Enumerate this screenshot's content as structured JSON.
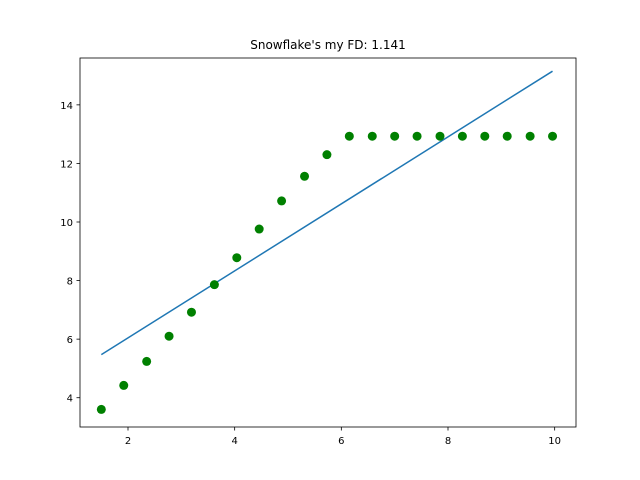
{
  "chart_data": {
    "type": "scatter",
    "title": "Snowflake's my FD: 1.141",
    "xlabel": "",
    "ylabel": "",
    "xlim": [
      1.1,
      10.4
    ],
    "ylim": [
      3.0,
      15.6
    ],
    "x_ticks": [
      2,
      4,
      6,
      8,
      10
    ],
    "y_ticks": [
      4,
      6,
      8,
      10,
      12,
      14
    ],
    "grid": false,
    "legend": null,
    "series": [
      {
        "kind": "scatter",
        "color": "#008000",
        "x": [
          1.5,
          1.92,
          2.35,
          2.77,
          3.19,
          3.62,
          4.04,
          4.46,
          4.88,
          5.31,
          5.73,
          6.15,
          6.58,
          7.0,
          7.42,
          7.85,
          8.27,
          8.69,
          9.11,
          9.54,
          9.96
        ],
        "y": [
          3.6,
          4.42,
          5.24,
          6.1,
          6.92,
          7.86,
          8.78,
          9.76,
          10.72,
          11.56,
          12.3,
          12.93,
          12.93,
          12.93,
          12.93,
          12.93,
          12.93,
          12.93,
          12.93,
          12.93,
          12.93
        ]
      },
      {
        "kind": "line",
        "color": "#1f77b4",
        "x": [
          1.5,
          9.96
        ],
        "y": [
          5.47,
          15.15
        ]
      }
    ]
  }
}
